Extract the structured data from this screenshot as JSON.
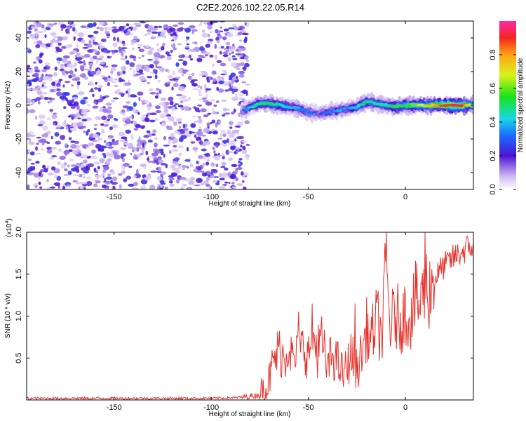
{
  "title": "C2E2.2026.102.22.05.R14",
  "chart_data": [
    {
      "type": "heatmap",
      "name": "spectrogram",
      "xlabel": "Height of straight line (km)",
      "ylabel": "Frequency (Hz)",
      "xlim": [
        -195,
        35
      ],
      "ylim": [
        -50,
        50
      ],
      "xticks": [
        -150,
        -100,
        -50,
        0
      ],
      "yticks": [
        -40,
        -20,
        0,
        20,
        40
      ],
      "noise_region_x": [
        -195,
        -83
      ],
      "signal_start_x": -84,
      "signal_track": {
        "x": [
          -84,
          -80,
          -75,
          -70,
          -65,
          -60,
          -55,
          -50,
          -45,
          -40,
          -35,
          -30,
          -25,
          -20,
          -15,
          -10,
          -5,
          0,
          5,
          10,
          15,
          20,
          25,
          30,
          35
        ],
        "freq": [
          -4,
          -1,
          1,
          1,
          0,
          -1,
          -2,
          -4,
          -5,
          -4,
          -3,
          -2,
          -1,
          2,
          1,
          0,
          -1,
          0,
          0,
          0,
          0,
          0,
          0,
          0,
          0
        ],
        "peak_amp": [
          0.3,
          0.45,
          0.55,
          0.55,
          0.5,
          0.45,
          0.4,
          0.35,
          0.3,
          0.35,
          0.4,
          0.4,
          0.45,
          0.55,
          0.5,
          0.5,
          0.6,
          0.6,
          0.65,
          0.75,
          0.85,
          0.95,
          0.98,
          0.95,
          0.6
        ]
      }
    },
    {
      "type": "colorbar",
      "name": "colorbar",
      "label": "Normalized spectral amplitude",
      "range": [
        0,
        1
      ],
      "ticks": [
        "0.0",
        "0.2",
        "0.4",
        "0.6",
        "0.8"
      ]
    },
    {
      "type": "line",
      "name": "snr",
      "xlabel": "Height of straight line (km)",
      "ylabel": "SNR (10 * v/v)",
      "multiplier": "(x10",
      "multiplier_exp": "4",
      "multiplier_close": ")",
      "xlim": [
        -195,
        35
      ],
      "ylim": [
        0,
        2.0
      ],
      "xticks": [
        -150,
        -100,
        -50,
        0
      ],
      "yticks": [
        "0.5",
        "1.0",
        "1.5",
        "2.0"
      ],
      "color": "#e8302a",
      "x": [
        -195,
        -100,
        -85,
        -75,
        -72,
        -70,
        -68,
        -65,
        -62,
        -60,
        -58,
        -55,
        -52,
        -50,
        -48,
        -45,
        -43,
        -40,
        -38,
        -35,
        -32,
        -30,
        -28,
        -25,
        -22,
        -20,
        -18,
        -15,
        -12,
        -10,
        -8,
        -5,
        -2,
        0,
        3,
        5,
        8,
        10,
        12,
        15,
        18,
        20,
        25,
        30,
        35
      ],
      "y": [
        0.02,
        0.02,
        0.03,
        0.06,
        0.15,
        0.25,
        0.45,
        0.6,
        0.5,
        0.7,
        0.45,
        0.55,
        0.65,
        0.5,
        0.8,
        0.55,
        0.7,
        0.35,
        0.55,
        0.45,
        0.3,
        0.4,
        0.55,
        0.35,
        0.6,
        0.85,
        0.7,
        0.95,
        0.75,
        1.6,
        0.9,
        1.0,
        0.95,
        1.05,
        1.0,
        1.2,
        1.1,
        1.4,
        1.3,
        1.45,
        1.55,
        1.6,
        1.7,
        1.78,
        1.85
      ],
      "spikes": [
        {
          "x": -10,
          "y": 2.0
        },
        {
          "x": 10,
          "y": 2.0
        },
        {
          "x": -55,
          "y": 1.05
        },
        {
          "x": -45,
          "y": 0.9
        },
        {
          "x": -26,
          "y": 1.15
        },
        {
          "x": -14,
          "y": 1.3
        },
        {
          "x": 8,
          "y": 1.4
        }
      ]
    }
  ]
}
